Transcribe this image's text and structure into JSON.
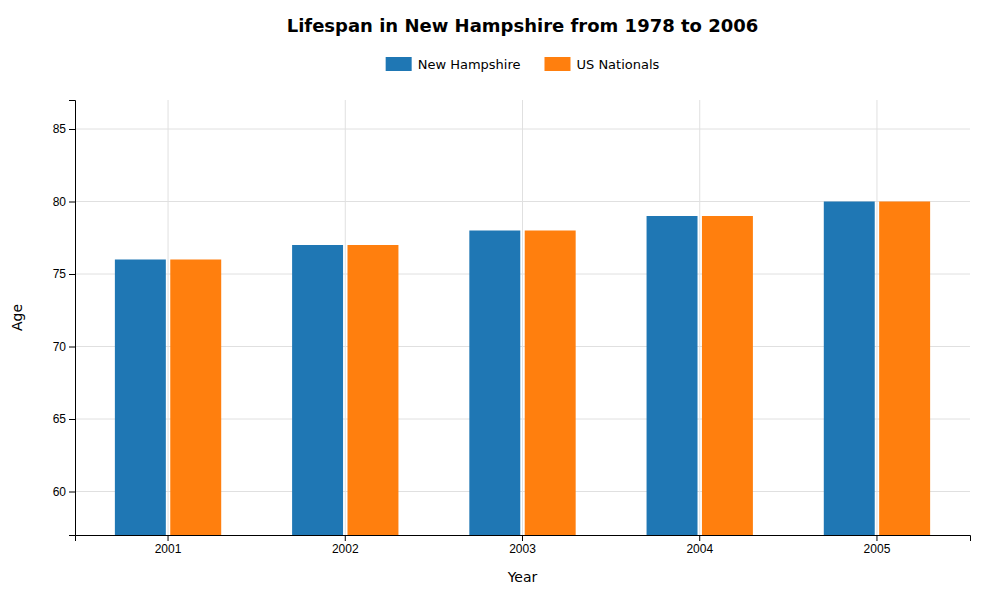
{
  "chart_data": {
    "type": "bar",
    "title": "Lifespan in New Hampshire from 1978 to 2006",
    "xlabel": "Year",
    "ylabel": "Age",
    "categories": [
      "2001",
      "2002",
      "2003",
      "2004",
      "2005"
    ],
    "series": [
      {
        "name": "New Hampshire",
        "values": [
          76,
          77,
          78,
          79,
          80
        ]
      },
      {
        "name": "US Nationals",
        "values": [
          76,
          77,
          78,
          79,
          80
        ]
      }
    ],
    "ylim": [
      57,
      87
    ],
    "yticks": [
      60,
      65,
      70,
      75,
      80,
      85
    ],
    "grid": true,
    "legend": "top"
  }
}
